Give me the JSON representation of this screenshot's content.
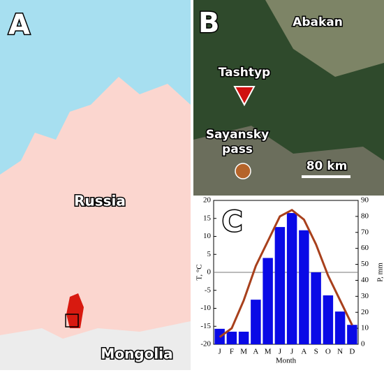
{
  "panels": {
    "A": {
      "label": "A",
      "country": "Russia",
      "neighbor": "Mongolia"
    },
    "B": {
      "label": "B",
      "city": "Abakan",
      "site": "Tashtyp",
      "pass": [
        "Sayansky",
        "pass"
      ],
      "scale": "80 km"
    }
  },
  "chart_data": {
    "type": "bar",
    "panel_label": "C",
    "categories": [
      "J",
      "F",
      "M",
      "A",
      "M",
      "J",
      "J",
      "A",
      "S",
      "O",
      "N",
      "D"
    ],
    "x_label": "Month",
    "y_label": "T, °C",
    "y2_label": "P, mm",
    "ylim": [
      -20,
      20
    ],
    "yticks": [
      -20,
      -15,
      -10,
      -5,
      0,
      5,
      10,
      15,
      20
    ],
    "y2lim": [
      0,
      90
    ],
    "y2ticks": [
      0,
      10,
      20,
      30,
      40,
      50,
      60,
      70,
      80,
      90
    ],
    "series": [
      {
        "type": "bar",
        "color": "#0a0ae6",
        "values": [
          -15.7,
          -16.5,
          -16.5,
          -7.6,
          4,
          12.6,
          16.5,
          11.7,
          0,
          -6.4,
          -10.9,
          -14.6
        ]
      },
      {
        "type": "line",
        "axis": "y2",
        "color": "#a8401c",
        "values": [
          4.5,
          10,
          27.5,
          49,
          64.5,
          80,
          84,
          78,
          62.5,
          43,
          27.5,
          12
        ]
      }
    ]
  }
}
